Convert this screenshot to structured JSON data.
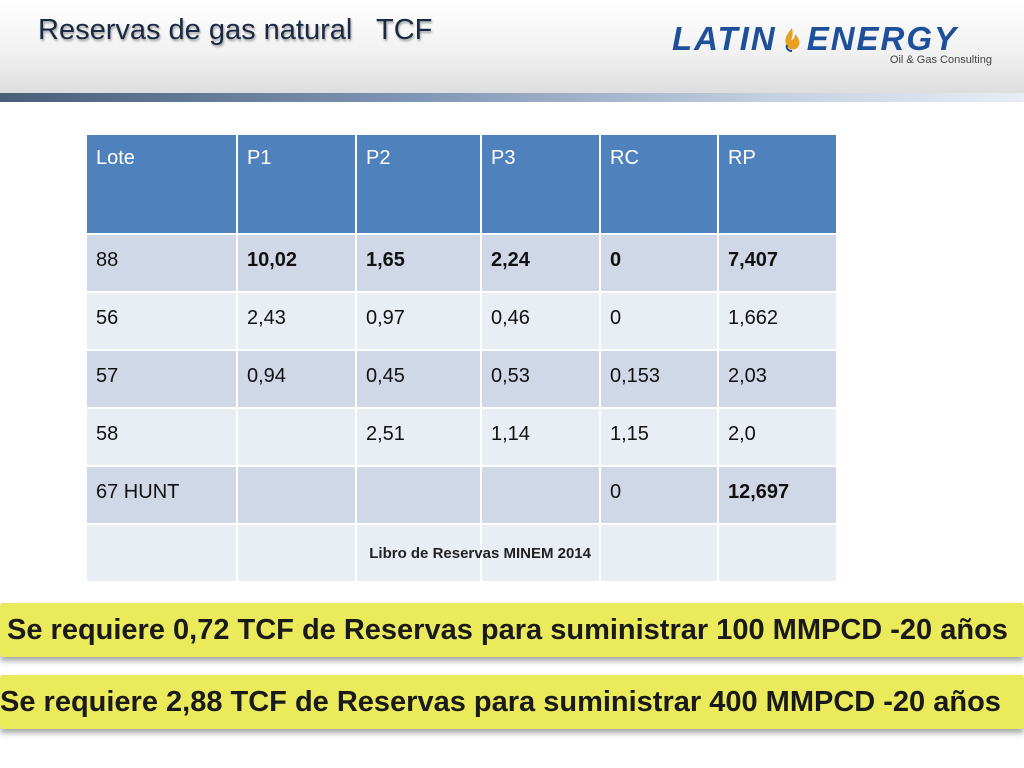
{
  "slide": {
    "title": "Reservas de gas natural   TCF",
    "logo": {
      "word_left": "LATIN",
      "word_right": "ENERGY",
      "tagline": "Oil & Gas Consulting",
      "brand_color": "#1e4f9a",
      "flame_color": "#e8a020"
    }
  },
  "table": {
    "headers": [
      "Lote",
      "P1",
      "P2",
      "P3",
      "RC",
      "RP"
    ],
    "rows": [
      [
        "88",
        "10,02",
        "1,65",
        "2,24",
        "0",
        "7,407"
      ],
      [
        "56",
        "2,43",
        "0,97",
        "0,46",
        "0",
        "1,662"
      ],
      [
        "57",
        "0,94",
        "0,45",
        "0,53",
        "0,153",
        "2,03"
      ],
      [
        "58",
        "",
        "2,51",
        "1,14",
        "1,15",
        "2,0"
      ],
      [
        "67 HUNT",
        "",
        "",
        "",
        "0",
        "12,697"
      ]
    ],
    "source_note": "Libro de Reservas MINEM 2014",
    "header_color": "#4f81bd",
    "row_colors": [
      "#d0d8e8",
      "#e9edf4"
    ]
  },
  "callouts": [
    "Se requiere 0,72  TCF de Reservas para suministrar 100 MMPCD -20 años",
    "Se requiere 2,88  TCF de Reservas para suministrar 400 MMPCD -20 años"
  ],
  "callout_color": "#eaea5a"
}
